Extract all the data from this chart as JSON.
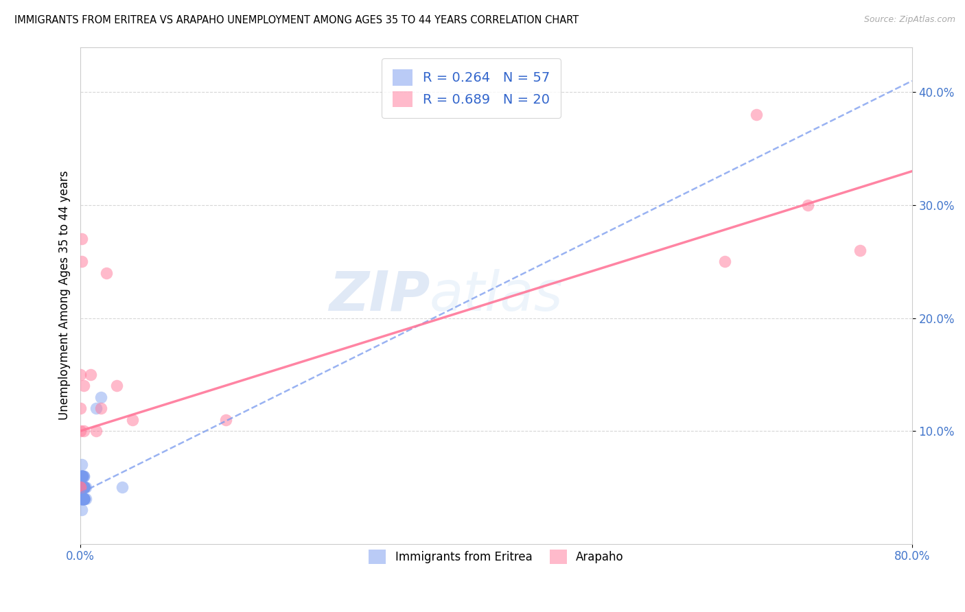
{
  "title": "IMMIGRANTS FROM ERITREA VS ARAPAHO UNEMPLOYMENT AMONG AGES 35 TO 44 YEARS CORRELATION CHART",
  "source": "Source: ZipAtlas.com",
  "ylabel": "Unemployment Among Ages 35 to 44 years",
  "xlim": [
    0,
    0.8
  ],
  "ylim": [
    0,
    0.44
  ],
  "xticks": [
    0.0,
    0.8
  ],
  "yticks": [
    0.1,
    0.2,
    0.3,
    0.4
  ],
  "legend1_label": "R = 0.264   N = 57",
  "legend2_label": "R = 0.689   N = 20",
  "legend_bottom_label1": "Immigrants from Eritrea",
  "legend_bottom_label2": "Arapaho",
  "blue_color": "#7799ee",
  "pink_color": "#ff7799",
  "watermark_zip": "ZIP",
  "watermark_atlas": "atlas",
  "eritrea_x": [
    0.001,
    0.002,
    0.003,
    0.002,
    0.001,
    0.003,
    0.004,
    0.003,
    0.002,
    0.001,
    0.0,
    0.001,
    0.0,
    0.001,
    0.002,
    0.003,
    0.001,
    0.002,
    0.003,
    0.004,
    0.005,
    0.002,
    0.003,
    0.001,
    0.002,
    0.003,
    0.001,
    0.002,
    0.001,
    0.003,
    0.002,
    0.001,
    0.004,
    0.003,
    0.002,
    0.001,
    0.005,
    0.003,
    0.002,
    0.001,
    0.003,
    0.002,
    0.001,
    0.004,
    0.003,
    0.002,
    0.001,
    0.002,
    0.003,
    0.002,
    0.001,
    0.002,
    0.003,
    0.001,
    0.015,
    0.02,
    0.04
  ],
  "eritrea_y": [
    0.04,
    0.05,
    0.04,
    0.06,
    0.05,
    0.04,
    0.05,
    0.06,
    0.04,
    0.05,
    0.04,
    0.05,
    0.06,
    0.04,
    0.05,
    0.04,
    0.06,
    0.05,
    0.04,
    0.05,
    0.04,
    0.06,
    0.05,
    0.07,
    0.04,
    0.05,
    0.06,
    0.04,
    0.05,
    0.04,
    0.06,
    0.05,
    0.04,
    0.05,
    0.04,
    0.06,
    0.05,
    0.04,
    0.05,
    0.04,
    0.06,
    0.05,
    0.04,
    0.05,
    0.04,
    0.06,
    0.05,
    0.04,
    0.05,
    0.04,
    0.06,
    0.05,
    0.04,
    0.03,
    0.12,
    0.13,
    0.05
  ],
  "arapaho_x": [
    0.001,
    0.001,
    0.003,
    0.003,
    0.01,
    0.015,
    0.02,
    0.025,
    0.035,
    0.05,
    0.14,
    0.62,
    0.65,
    0.7,
    0.75,
    0.0,
    0.0,
    0.0,
    0.0,
    0.0
  ],
  "arapaho_y": [
    0.25,
    0.27,
    0.14,
    0.1,
    0.15,
    0.1,
    0.12,
    0.24,
    0.14,
    0.11,
    0.11,
    0.25,
    0.38,
    0.3,
    0.26,
    0.1,
    0.12,
    0.15,
    0.05,
    0.05
  ],
  "eritrea_trendline_x": [
    0.0,
    0.8
  ],
  "eritrea_trendline_y": [
    0.045,
    0.41
  ],
  "arapaho_trendline_x": [
    0.0,
    0.8
  ],
  "arapaho_trendline_y": [
    0.1,
    0.33
  ]
}
